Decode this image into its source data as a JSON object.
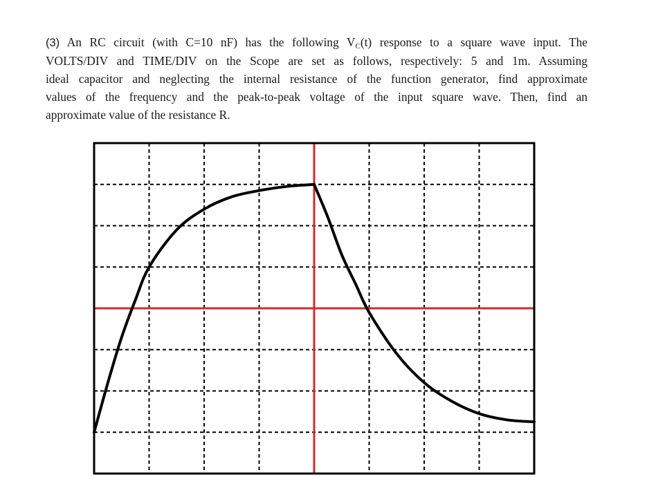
{
  "problem": {
    "number": "(3)",
    "line1_a": " An RC circuit (with C=10 nF) has the following V",
    "line1_sub": "C",
    "line1_b": "(t) response to a square wave input. The",
    "line2": "VOLTS/DIV and TIME/DIV on the Scope are set as follows, respectively: 5 and 1m. Assuming",
    "line3": "ideal capacitor and neglecting the internal resistance of the function generator, find approximate",
    "line4": "values of the frequency and the peak-to-peak voltage of the input square wave. Then, find an",
    "line5": "approximate value of the resistance R."
  },
  "scope": {
    "horizontal_divisions": 8,
    "vertical_divisions": 8,
    "grid_color": "#000000",
    "axis_color": "#d42a2a",
    "trace_color": "#000000",
    "center_vertical_division": 4,
    "center_horizontal_division": 4
  },
  "chart_data": {
    "type": "line",
    "title": "",
    "xlabel": "",
    "ylabel": "",
    "xlim": [
      0,
      8
    ],
    "ylim": [
      0,
      8
    ],
    "grid": true,
    "x_units": "divisions",
    "y_units": "divisions",
    "series": [
      {
        "values_xy": [
          [
            0,
            1
          ],
          [
            0.25,
            2.2
          ],
          [
            0.5,
            3.3
          ],
          [
            0.75,
            4.2
          ],
          [
            1,
            5.0
          ],
          [
            1.5,
            5.9
          ],
          [
            2,
            6.4
          ],
          [
            2.5,
            6.7
          ],
          [
            3,
            6.85
          ],
          [
            3.5,
            6.95
          ],
          [
            4,
            7.0
          ],
          [
            4.25,
            6.2
          ],
          [
            4.5,
            5.3
          ],
          [
            4.75,
            4.6
          ],
          [
            5,
            3.9
          ],
          [
            5.5,
            2.9
          ],
          [
            6,
            2.2
          ],
          [
            6.5,
            1.75
          ],
          [
            7,
            1.45
          ],
          [
            7.5,
            1.3
          ],
          [
            8,
            1.25
          ]
        ]
      }
    ]
  }
}
